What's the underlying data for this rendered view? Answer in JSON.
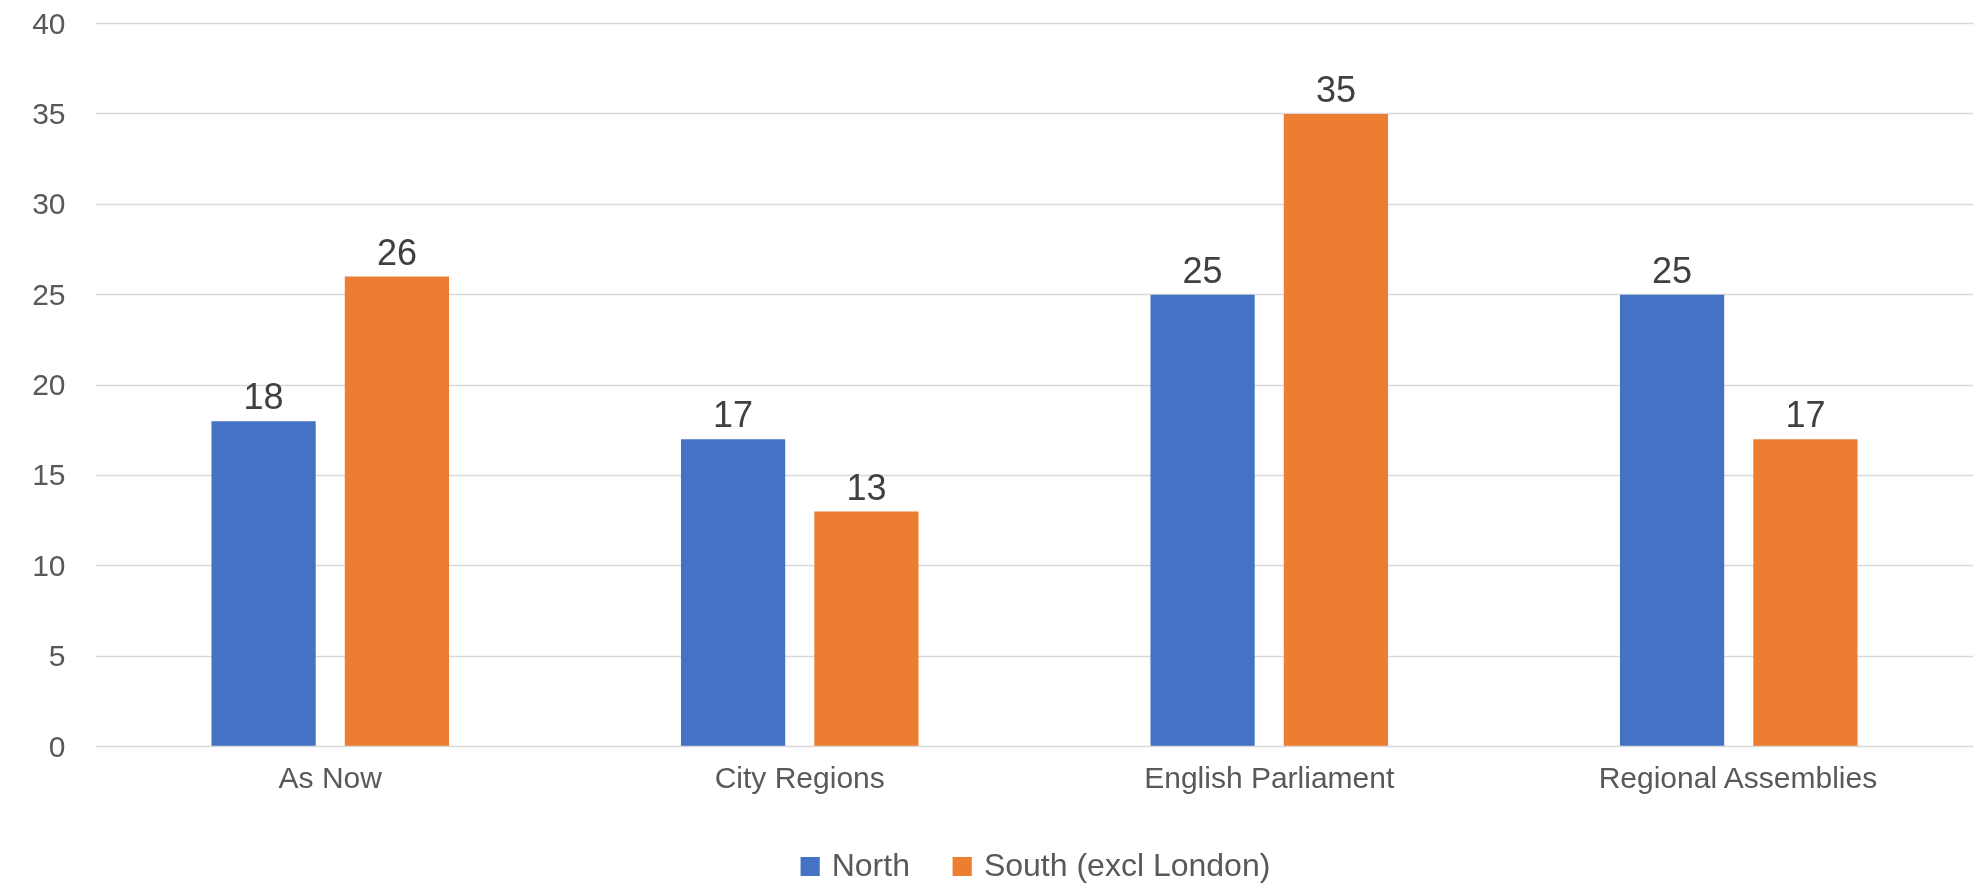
{
  "chart_data": {
    "type": "bar",
    "categories": [
      "As Now",
      "City Regions",
      "English Parliament",
      "Regional Assemblies"
    ],
    "series": [
      {
        "name": "North",
        "color": "#4472c4",
        "values": [
          18,
          17,
          25,
          25
        ]
      },
      {
        "name": "South (excl London)",
        "color": "#ed7d31",
        "values": [
          26,
          13,
          35,
          17
        ]
      }
    ],
    "ylim": [
      0,
      40
    ],
    "yticks": [
      0,
      5,
      10,
      15,
      20,
      25,
      30,
      35,
      40
    ],
    "grid": "y",
    "legend": "bottom",
    "data_labels": true
  }
}
